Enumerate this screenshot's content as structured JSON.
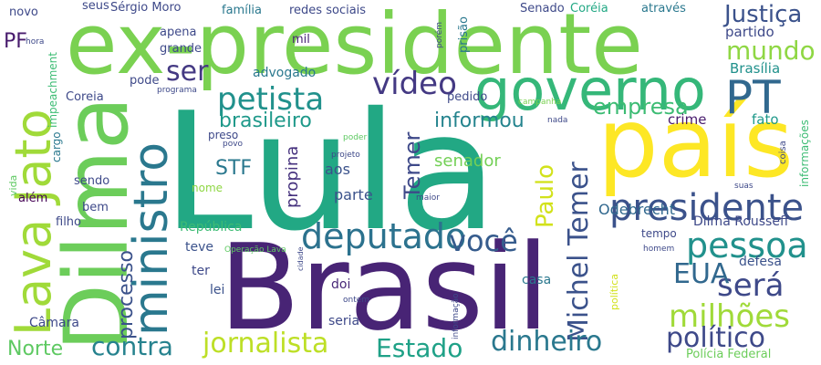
{
  "words": [
    {
      "text": "ex-presidente",
      "color": "#7ad151"
    },
    {
      "text": "Lula",
      "color": "#22a884"
    },
    {
      "text": "Brasil",
      "color": "#482475"
    },
    {
      "text": "Dilma",
      "color": "#6ccd5a"
    },
    {
      "text": "país",
      "color": "#fde725"
    },
    {
      "text": "Lava Jato",
      "color": "#a0da39"
    },
    {
      "text": "governo",
      "color": "#35b779"
    },
    {
      "text": "ministro",
      "color": "#2a788e"
    },
    {
      "text": "PT",
      "color": "#31688e"
    },
    {
      "text": "presidente",
      "color": "#3b528b"
    },
    {
      "text": "Michel Temer",
      "color": "#3b528b"
    },
    {
      "text": "deputado",
      "color": "#2c728e"
    },
    {
      "text": "pessoa",
      "color": "#21918c"
    },
    {
      "text": "petista",
      "color": "#21918c"
    },
    {
      "text": "jornalista",
      "color": "#bddf26"
    },
    {
      "text": "milhões",
      "color": "#a0da39"
    },
    {
      "text": "político",
      "color": "#3e4989"
    },
    {
      "text": "dinheiro",
      "color": "#2a788e"
    },
    {
      "text": "contra",
      "color": "#26828e"
    },
    {
      "text": "vídeo",
      "color": "#443983"
    },
    {
      "text": "mundo",
      "color": "#8fd744"
    },
    {
      "text": "você",
      "color": "#365c8d"
    },
    {
      "text": "será",
      "color": "#3e4989"
    },
    {
      "text": "EUA",
      "color": "#31688e"
    },
    {
      "text": "Estado",
      "color": "#1fa187"
    },
    {
      "text": "Justiça",
      "color": "#3b528b"
    },
    {
      "text": "ser",
      "color": "#443983"
    },
    {
      "text": "Paulo",
      "color": "#d2e21b"
    },
    {
      "text": "processo",
      "color": "#3b528b"
    },
    {
      "text": "Temer",
      "color": "#3e4989"
    },
    {
      "text": "empresa",
      "color": "#3dbc74"
    },
    {
      "text": "brasileiro",
      "color": "#1f998a"
    },
    {
      "text": "informou",
      "color": "#25848e"
    },
    {
      "text": "STF",
      "color": "#2a788e"
    },
    {
      "text": "Norte",
      "color": "#5ec962"
    },
    {
      "text": "PF",
      "color": "#481b6d"
    },
    {
      "text": "propina",
      "color": "#46327e"
    },
    {
      "text": "senador",
      "color": "#73d056"
    },
    {
      "text": "Odebrecht",
      "color": "#31688e"
    },
    {
      "text": "crime",
      "color": "#481b6d"
    },
    {
      "text": "fato",
      "color": "#1f998a"
    },
    {
      "text": "partido",
      "color": "#3e4989"
    },
    {
      "text": "Brasília",
      "color": "#21918c"
    },
    {
      "text": "aos",
      "color": "#3b528b"
    },
    {
      "text": "parte",
      "color": "#3b528b"
    },
    {
      "text": "Dilma Rousseff",
      "color": "#3e4989"
    },
    {
      "text": "defesa",
      "color": "#3b528b"
    },
    {
      "text": "Câmara",
      "color": "#3e4989"
    },
    {
      "text": "seria",
      "color": "#3e4989"
    },
    {
      "text": "casa",
      "color": "#2a788e"
    },
    {
      "text": "doi",
      "color": "#482878"
    },
    {
      "text": "lei",
      "color": "#3b528b"
    },
    {
      "text": "ter",
      "color": "#3e4989"
    },
    {
      "text": "teve",
      "color": "#3b528b"
    },
    {
      "text": "República",
      "color": "#3dbc74"
    },
    {
      "text": "advogado",
      "color": "#2a788e"
    },
    {
      "text": "mil",
      "color": "#482475"
    },
    {
      "text": "grande",
      "color": "#3e4989"
    },
    {
      "text": "apena",
      "color": "#3e4989"
    },
    {
      "text": "Sérgio Moro",
      "color": "#3e4989"
    },
    {
      "text": "família",
      "color": "#2a788e"
    },
    {
      "text": "redes sociais",
      "color": "#3e4989"
    },
    {
      "text": "Senado",
      "color": "#3e4989"
    },
    {
      "text": "Coréia",
      "color": "#22a884"
    },
    {
      "text": "através",
      "color": "#2a788e"
    },
    {
      "text": "seus",
      "color": "#3e4989"
    },
    {
      "text": "novo",
      "color": "#3e4989"
    },
    {
      "text": "prisão",
      "color": "#2a788e"
    },
    {
      "text": "pode",
      "color": "#3e4989"
    },
    {
      "text": "Coreia",
      "color": "#3e4989"
    },
    {
      "text": "pedido",
      "color": "#3e4989"
    },
    {
      "text": "tempo",
      "color": "#3e4989"
    },
    {
      "text": "Polícia Federal",
      "color": "#6ccd5a"
    },
    {
      "text": "sendo",
      "color": "#3e4989"
    },
    {
      "text": "filho",
      "color": "#3e4989"
    },
    {
      "text": "bem",
      "color": "#3e4989"
    },
    {
      "text": "além",
      "color": "#440154"
    },
    {
      "text": "nome",
      "color": "#8fd744"
    },
    {
      "text": "preso",
      "color": "#3e4989"
    },
    {
      "text": "impeachment",
      "color": "#3dbc74"
    },
    {
      "text": "cargo",
      "color": "#2a788e"
    },
    {
      "text": "informações",
      "color": "#3dbc74"
    },
    {
      "text": "vida",
      "color": "#5ec962"
    },
    {
      "text": "coisa",
      "color": "#3e4989"
    },
    {
      "text": "hora",
      "color": "#3e4989"
    },
    {
      "text": "programa",
      "color": "#3e4989"
    },
    {
      "text": "campanha",
      "color": "#7ad151"
    },
    {
      "text": "poder",
      "color": "#5ec962"
    },
    {
      "text": "projeto",
      "color": "#3e4989"
    },
    {
      "text": "povo",
      "color": "#3e4989"
    },
    {
      "text": "maior",
      "color": "#3e4989"
    },
    {
      "text": "nada",
      "color": "#3e4989"
    },
    {
      "text": "porém",
      "color": "#3e4989"
    },
    {
      "text": "Operação Lava",
      "color": "#5ec962"
    },
    {
      "text": "cidade",
      "color": "#3e4989"
    },
    {
      "text": "ontem",
      "color": "#3e4989"
    },
    {
      "text": "informação",
      "color": "#3e4989"
    },
    {
      "text": "homem",
      "color": "#3e4989"
    },
    {
      "text": "suas",
      "color": "#3e4989"
    },
    {
      "text": "política",
      "color": "#d2e21b"
    }
  ]
}
